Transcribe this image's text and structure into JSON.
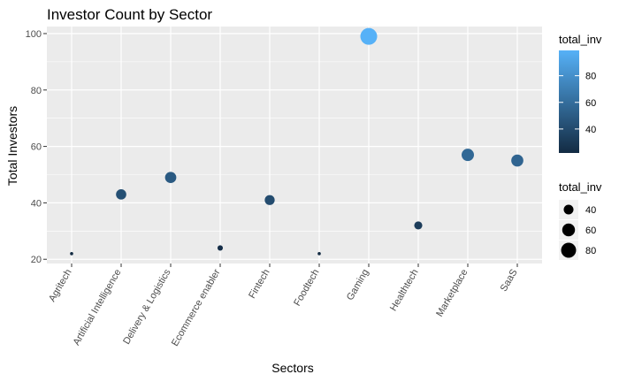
{
  "chart_data": {
    "type": "scatter",
    "title": "Investor Count by Sector",
    "xlabel": "Sectors",
    "ylabel": "Total Investors",
    "categories": [
      "Agritech",
      "Artificial Intelligence",
      "Delivery & Logistics",
      "Ecommerce enabler",
      "Fintech",
      "Foodtech",
      "Gaming",
      "Healthtech",
      "Marketplace",
      "SaaS"
    ],
    "values": [
      22,
      43,
      49,
      24,
      41,
      22,
      99,
      32,
      57,
      55
    ],
    "ylim": [
      18.5,
      102.5
    ],
    "yticks": [
      20,
      40,
      60,
      80,
      100
    ],
    "grid": true,
    "legend_position": "right",
    "color_legend": {
      "title": "total_inv",
      "breaks": [
        40,
        60,
        80
      ],
      "low_color": "#132B43",
      "high_color": "#56B1F7"
    },
    "size_legend": {
      "title": "total_inv",
      "breaks": [
        40,
        60,
        80
      ]
    },
    "panel_background": "#EBEBEB"
  }
}
